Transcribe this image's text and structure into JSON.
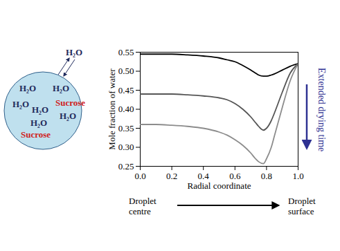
{
  "chart_data": {
    "type": "line",
    "x_label": "Radial coordinate",
    "y_label": "Mole fraction of water",
    "x": [
      0,
      0.1,
      0.2,
      0.3,
      0.4,
      0.5,
      0.55,
      0.6,
      0.65,
      0.7,
      0.73,
      0.75,
      0.78,
      0.8,
      0.83,
      0.85,
      0.9,
      0.95,
      1.0
    ],
    "series": [
      {
        "color": "#000000",
        "values": [
          0.545,
          0.545,
          0.545,
          0.543,
          0.54,
          0.535,
          0.53,
          0.525,
          0.515,
          0.503,
          0.495,
          0.49,
          0.487,
          0.487,
          0.49,
          0.493,
          0.503,
          0.513,
          0.52
        ]
      },
      {
        "color": "#555555",
        "values": [
          0.44,
          0.44,
          0.44,
          0.438,
          0.435,
          0.43,
          0.425,
          0.415,
          0.4,
          0.38,
          0.365,
          0.355,
          0.345,
          0.35,
          0.37,
          0.39,
          0.445,
          0.495,
          0.52
        ]
      },
      {
        "color": "#8c8c8c",
        "values": [
          0.36,
          0.36,
          0.358,
          0.355,
          0.35,
          0.34,
          0.332,
          0.32,
          0.305,
          0.285,
          0.27,
          0.262,
          0.257,
          0.27,
          0.3,
          0.33,
          0.405,
          0.475,
          0.52
        ]
      }
    ],
    "xlim": [
      0,
      1.0
    ],
    "xticks": [
      {
        "value": 0,
        "label": "0.0"
      },
      {
        "value": 0.2,
        "label": "0.2"
      },
      {
        "value": 0.4,
        "label": "0.4"
      },
      {
        "value": 0.6,
        "label": "0.6"
      },
      {
        "value": 0.8,
        "label": "0.8"
      },
      {
        "value": 1.0,
        "label": "1.0"
      }
    ],
    "ylim": [
      0.25,
      0.55
    ],
    "yticks": [
      {
        "value": 0.25,
        "label": "0.25"
      },
      {
        "value": 0.3,
        "label": "0.30"
      },
      {
        "value": 0.35,
        "label": "0.35"
      },
      {
        "value": 0.4,
        "label": "0.40"
      },
      {
        "value": 0.45,
        "label": "0.45"
      },
      {
        "value": 0.5,
        "label": "0.50"
      },
      {
        "value": 0.55,
        "label": "0.55"
      }
    ],
    "annotations": [
      {
        "text": "Extended drying time",
        "color": "#2e3192"
      },
      {
        "text": "Droplet centre",
        "color": "#000000"
      },
      {
        "text": "Droplet surface",
        "color": "#000000"
      }
    ]
  },
  "diagram": {
    "outside": {
      "label": "H₂O",
      "color": "#1f2a5c"
    },
    "inside": [
      {
        "label": "H₂O",
        "color": "#1f2a5c"
      },
      {
        "label": "H₂O",
        "color": "#1f2a5c"
      },
      {
        "label": "H₂O",
        "color": "#1f2a5c"
      },
      {
        "label": "Sucrose",
        "color": "#d0201c"
      },
      {
        "label": "H₂O",
        "color": "#1f2a5c"
      },
      {
        "label": "H₂O",
        "color": "#1f2a5c"
      },
      {
        "label": "H₂O",
        "color": "#1f2a5c"
      },
      {
        "label": "Sucrose",
        "color": "#d0201c"
      }
    ]
  }
}
